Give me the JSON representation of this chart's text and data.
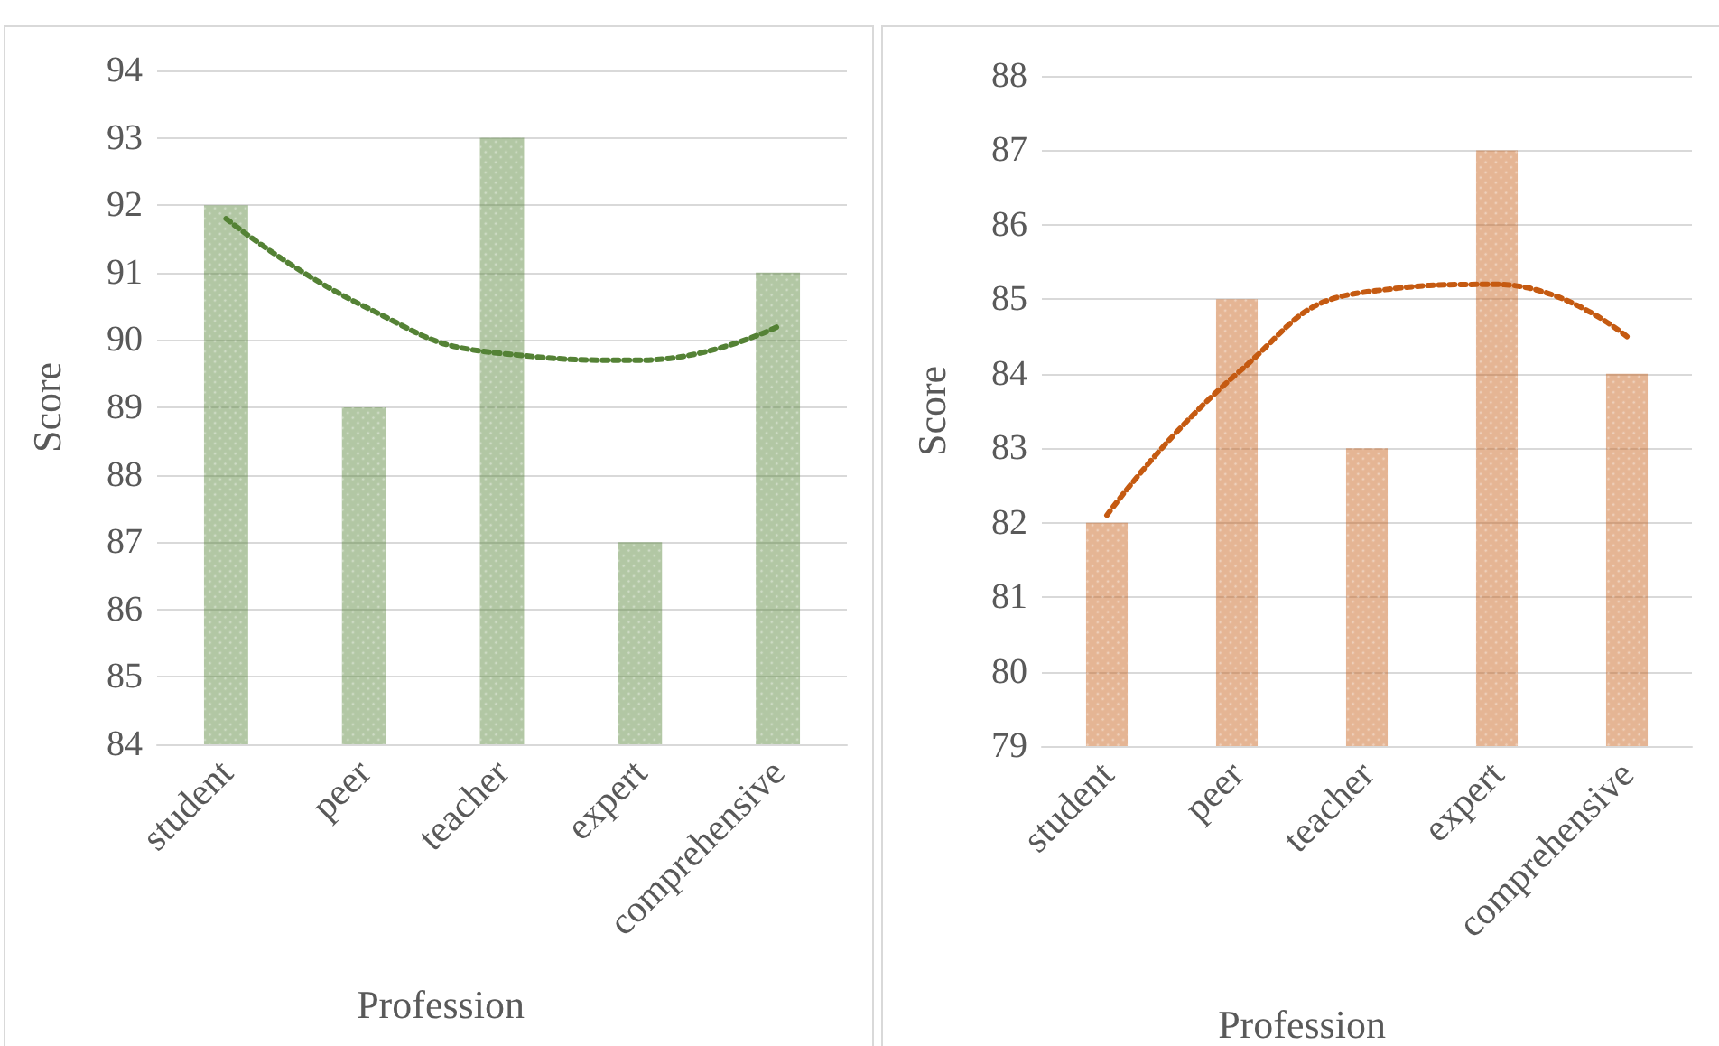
{
  "chart_data": [
    {
      "type": "bar",
      "xlabel": "Profession",
      "ylabel": "Score",
      "categories": [
        "student",
        "peer",
        "teacher",
        "expert",
        "comprehensive"
      ],
      "ylim": [
        84,
        94
      ],
      "yticks": [
        84,
        85,
        86,
        87,
        88,
        89,
        90,
        91,
        92,
        93,
        94
      ],
      "grid": "y",
      "series": [
        {
          "color": "#548235",
          "values": [
            92,
            89,
            93,
            87,
            91
          ]
        },
        {
          "type": "line",
          "color": "#548235",
          "line_style": "dotted",
          "marker": "none",
          "x": [
            "student",
            "peer",
            "teacher",
            "expert",
            "comprehensive"
          ],
          "values": [
            91.8,
            90.5,
            89.8,
            89.7,
            90.2
          ]
        }
      ]
    },
    {
      "type": "bar",
      "xlabel": "Profession",
      "ylabel": "Score",
      "categories": [
        "student",
        "peer",
        "teacher",
        "expert",
        "comprehensive"
      ],
      "ylim": [
        79,
        88
      ],
      "yticks": [
        79,
        80,
        81,
        82,
        83,
        84,
        85,
        86,
        87,
        88
      ],
      "grid": "y",
      "series": [
        {
          "color": "#c55a11",
          "values": [
            82,
            85,
            83,
            87,
            84
          ]
        },
        {
          "type": "line",
          "color": "#c55a11",
          "line_style": "dotted",
          "marker": "none",
          "x": [
            "student",
            "peer",
            "teacher",
            "expert",
            "comprehensive"
          ],
          "values": [
            82.1,
            84.0,
            85.1,
            85.2,
            84.5
          ]
        }
      ]
    }
  ]
}
